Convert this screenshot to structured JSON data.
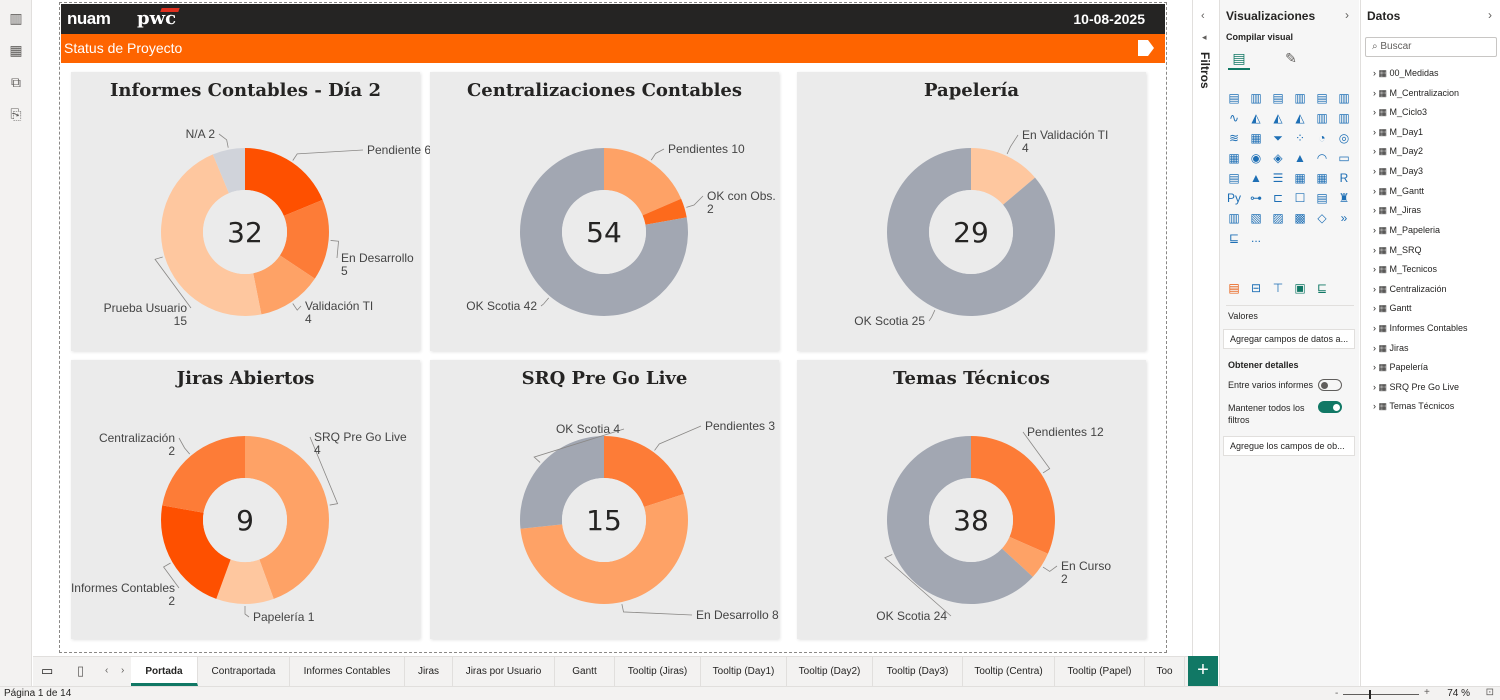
{
  "top": {
    "brand_left": "nuam",
    "brand_right": "pwc",
    "date": "10-08-2025",
    "status_title": "Status de Proyecto"
  },
  "chart_data": [
    {
      "type": "pie",
      "title": "Informes Contables - Día 2",
      "total": "32",
      "slices": [
        {
          "name": "Pendiente",
          "value": 6,
          "color": "#fe5000"
        },
        {
          "name": "En Desarrollo",
          "value": 5,
          "color": "#fd7c37"
        },
        {
          "name": "Validación TI",
          "value": 4,
          "color": "#fea266"
        },
        {
          "name": "Prueba Usuario",
          "value": 15,
          "color": "#fec79f"
        },
        {
          "name": "N/A",
          "value": 2,
          "color": "#d0d3da"
        }
      ],
      "labels": [
        {
          "lines": [
            "Pendiente 6"
          ]
        },
        {
          "lines": [
            "En Desarrollo",
            "5"
          ]
        },
        {
          "lines": [
            "Validación TI",
            "4"
          ]
        },
        {
          "lines": [
            "Prueba Usuario",
            "15"
          ]
        },
        {
          "lines": [
            "N/A 2"
          ]
        }
      ]
    },
    {
      "type": "pie",
      "title": "Centralizaciones Contables",
      "total": "54",
      "slices": [
        {
          "name": "Pendientes",
          "value": 10,
          "color": "#fea266"
        },
        {
          "name": "OK con Obs.",
          "value": 2,
          "color": "#fd6a1c"
        },
        {
          "name": "OK Scotia",
          "value": 42,
          "color": "#a2a7b2"
        }
      ],
      "labels": [
        {
          "lines": [
            "Pendientes 10"
          ]
        },
        {
          "lines": [
            "OK con Obs.",
            "2"
          ]
        },
        {
          "lines": [
            "OK Scotia 42"
          ]
        }
      ]
    },
    {
      "type": "pie",
      "title": "Papelería",
      "total": "29",
      "slices": [
        {
          "name": "En Validación TI",
          "value": 4,
          "color": "#fec79f"
        },
        {
          "name": "OK Scotia",
          "value": 25,
          "color": "#a2a7b2"
        }
      ],
      "labels": [
        {
          "lines": [
            "En Validación TI",
            "4"
          ]
        },
        {
          "lines": [
            "OK Scotia 25"
          ]
        }
      ]
    },
    {
      "type": "pie",
      "title": "Jiras Abiertos",
      "total": "9",
      "slices": [
        {
          "name": "SRQ Pre Go Live",
          "value": 4,
          "color": "#fea266"
        },
        {
          "name": "Papelería",
          "value": 1,
          "color": "#fec79f"
        },
        {
          "name": "Informes Contables",
          "value": 2,
          "color": "#fe5000"
        },
        {
          "name": "Centralización",
          "value": 2,
          "color": "#fd7c37"
        }
      ],
      "labels": [
        {
          "lines": [
            "SRQ Pre Go Live",
            "4"
          ]
        },
        {
          "lines": [
            "Papelería 1"
          ]
        },
        {
          "lines": [
            "Informes Contables",
            "2"
          ]
        },
        {
          "lines": [
            "Centralización",
            "2"
          ]
        }
      ]
    },
    {
      "type": "pie",
      "title": "SRQ Pre Go Live",
      "total": "15",
      "slices": [
        {
          "name": "Pendientes",
          "value": 3,
          "color": "#fd7c37"
        },
        {
          "name": "En Desarrollo",
          "value": 8,
          "color": "#fea266"
        },
        {
          "name": "OK Scotia",
          "value": 4,
          "color": "#a2a7b2"
        }
      ],
      "labels": [
        {
          "lines": [
            "Pendientes 3"
          ]
        },
        {
          "lines": [
            "En Desarrollo 8"
          ]
        },
        {
          "lines": [
            "OK Scotia 4"
          ]
        }
      ]
    },
    {
      "type": "pie",
      "title": "Temas Técnicos",
      "total": "38",
      "slices": [
        {
          "name": "Pendientes",
          "value": 12,
          "color": "#fd7c37"
        },
        {
          "name": "En Curso",
          "value": 2,
          "color": "#fea266"
        },
        {
          "name": "OK Scotia",
          "value": 24,
          "color": "#a2a7b2"
        }
      ],
      "labels": [
        {
          "lines": [
            "Pendientes 12"
          ]
        },
        {
          "lines": [
            "En Curso",
            "2"
          ]
        },
        {
          "lines": [
            "OK Scotia 24"
          ]
        }
      ]
    }
  ],
  "filters_label": "Filtros",
  "viz_pane": {
    "title": "Visualizaciones",
    "subtitle": "Compilar visual",
    "more_label": "...",
    "values_label": "Valores",
    "values_placeholder": "Agregar campos de datos a...",
    "drill_label": "Obtener detalles",
    "cross_report_label": "Entre varios informes",
    "keep_filters_label": "Mantener todos los filtros",
    "drill_placeholder": "Agregue los campos de ob..."
  },
  "data_pane": {
    "title": "Datos",
    "search_placeholder": "Buscar",
    "fields": [
      "00_Medidas",
      "M_Centralizacion",
      "M_Ciclo3",
      "M_Day1",
      "M_Day2",
      "M_Day3",
      "M_Gantt",
      "M_Jiras",
      "M_Papeleria",
      "M_SRQ",
      "M_Tecnicos",
      "Centralización",
      "Gantt",
      "Informes Contables",
      "Jiras",
      "Papelería",
      "SRQ Pre Go Live",
      "Temas Técnicos"
    ]
  },
  "tabs": [
    "Portada",
    "Contraportada",
    "Informes Contables",
    "Jiras",
    "Jiras por Usuario",
    "Gantt",
    "Tooltip (Jiras)",
    "Tooltip (Day1)",
    "Tooltip (Day2)",
    "Tooltip (Day3)",
    "Tooltip (Centra)",
    "Tooltip (Papel)",
    "Too"
  ],
  "footer": {
    "page_label": "Página 1 de 14",
    "zoom_label": "74 %"
  }
}
